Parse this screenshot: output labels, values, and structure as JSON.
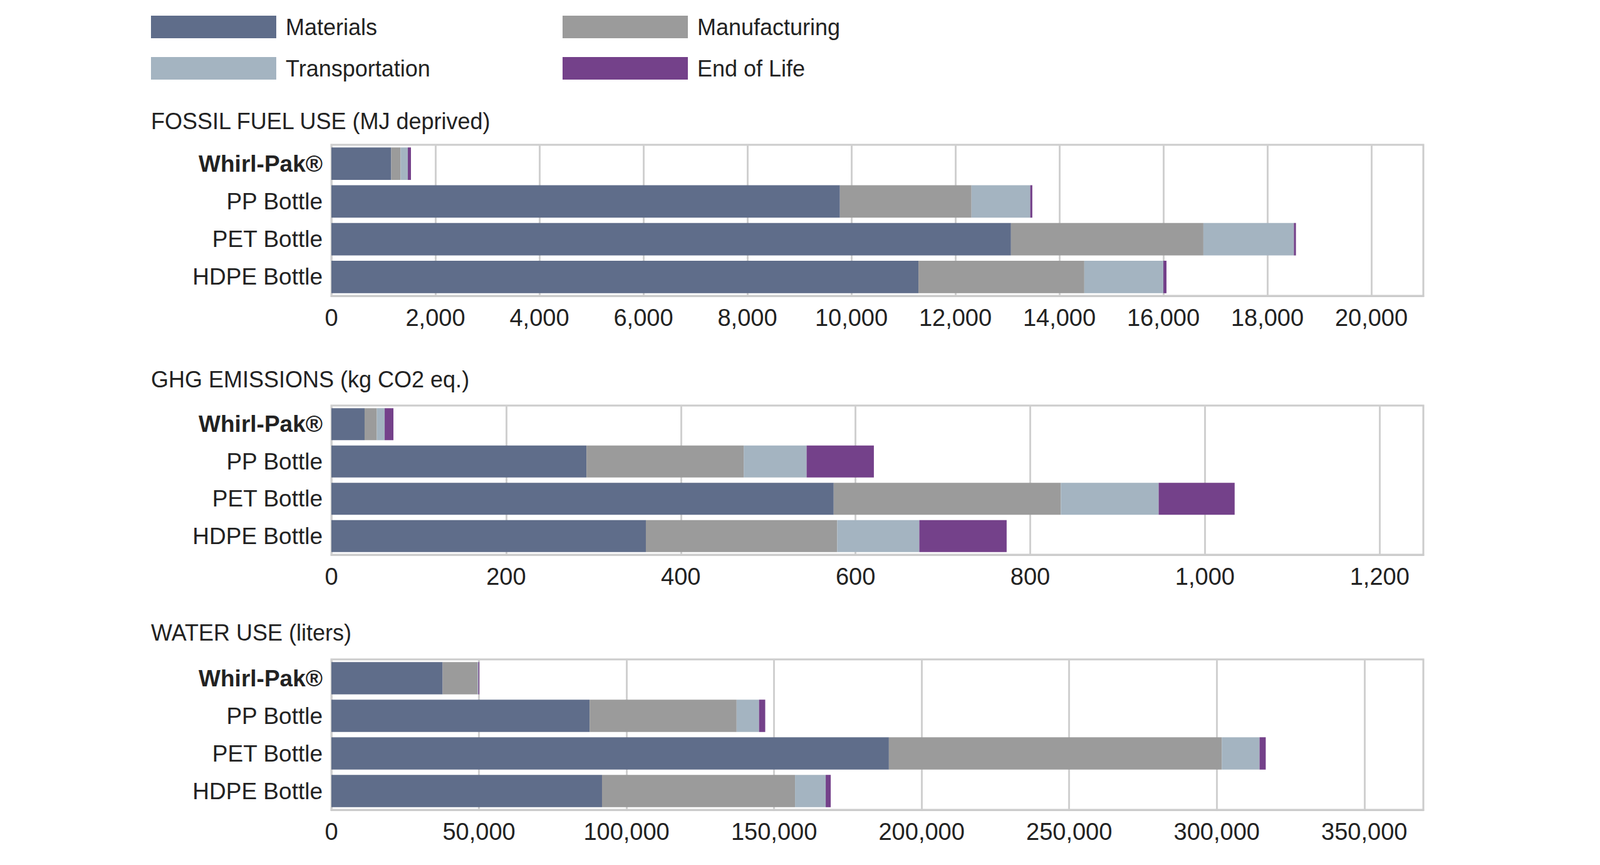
{
  "chart_data": [
    {
      "type": "bar",
      "title": "FOSSIL FUEL USE (MJ deprived)",
      "orientation": "horizontal",
      "stacked": true,
      "grid": true,
      "legend": "top left",
      "categories": [
        "Whirl-Pak®",
        "PP Bottle",
        "PET Bottle",
        "HDPE Bottle"
      ],
      "series": [
        {
          "name": "Materials",
          "color": "#5f6d8a",
          "values": [
            1150,
            9780,
            13070,
            11290
          ]
        },
        {
          "name": "Manufacturing",
          "color": "#9b9b9b",
          "values": [
            180,
            2530,
            3700,
            3190
          ]
        },
        {
          "name": "Transportation",
          "color": "#a4b4c1",
          "values": [
            140,
            1130,
            1740,
            1520
          ]
        },
        {
          "name": "End of Life",
          "color": "#74418a",
          "values": [
            60,
            40,
            40,
            60
          ]
        }
      ],
      "xlim": [
        0,
        21000
      ],
      "xticks": [
        0,
        {
          "value": 2000,
          "label": "2,000"
        },
        {
          "value": 4000,
          "label": "4,000"
        },
        {
          "value": 6000,
          "label": "6,000"
        },
        {
          "value": 8000,
          "label": "8,000"
        },
        {
          "value": 10000,
          "label": "10,000"
        },
        {
          "value": 12000,
          "label": "12,000"
        },
        {
          "value": 14000,
          "label": "14,000"
        },
        {
          "value": 16000,
          "label": "16,000"
        },
        {
          "value": 18000,
          "label": "18,000"
        },
        {
          "value": 20000,
          "label": "20,000"
        }
      ]
    },
    {
      "type": "bar",
      "title": "GHG EMISSIONS (kg CO2 eq.)",
      "orientation": "horizontal",
      "stacked": true,
      "grid": true,
      "categories": [
        "Whirl-Pak®",
        "PP Bottle",
        "PET Bottle",
        "HDPE Bottle"
      ],
      "series": [
        {
          "name": "Materials",
          "color": "#5f6d8a",
          "values": [
            38,
            292,
            575,
            360
          ]
        },
        {
          "name": "Manufacturing",
          "color": "#9b9b9b",
          "values": [
            14,
            180,
            260,
            219
          ]
        },
        {
          "name": "Transportation",
          "color": "#a4b4c1",
          "values": [
            9,
            72,
            112,
            94
          ]
        },
        {
          "name": "End of Life",
          "color": "#74418a",
          "values": [
            10,
            77,
            87,
            100
          ]
        }
      ],
      "xlim": [
        0,
        1250
      ],
      "xticks": [
        0,
        200,
        400,
        600,
        800,
        {
          "value": 1000,
          "label": "1,000"
        },
        {
          "value": 1200,
          "label": "1,200"
        }
      ]
    },
    {
      "type": "bar",
      "title": "WATER USE (liters)",
      "orientation": "horizontal",
      "stacked": true,
      "grid": true,
      "categories": [
        "Whirl-Pak®",
        "PP Bottle",
        "PET Bottle",
        "HDPE Bottle"
      ],
      "series": [
        {
          "name": "Materials",
          "color": "#5f6d8a",
          "values": [
            37700,
            87500,
            188900,
            91700
          ]
        },
        {
          "name": "Manufacturing",
          "color": "#9b9b9b",
          "values": [
            11800,
            49800,
            112800,
            65400
          ]
        },
        {
          "name": "Transportation",
          "color": "#a4b4c1",
          "values": [
            300,
            7600,
            12800,
            10400
          ]
        },
        {
          "name": "End of Life",
          "color": "#74418a",
          "values": [
            300,
            2100,
            2100,
            1700
          ]
        }
      ],
      "xlim": [
        0,
        370000
      ],
      "xticks": [
        0,
        {
          "value": 50000,
          "label": "50,000"
        },
        {
          "value": 100000,
          "label": "100,000"
        },
        {
          "value": 150000,
          "label": "150,000"
        },
        {
          "value": 200000,
          "label": "200,000"
        },
        {
          "value": 250000,
          "label": "250,000"
        },
        {
          "value": 300000,
          "label": "300,000"
        },
        {
          "value": 350000,
          "label": "350,000"
        }
      ]
    }
  ]
}
